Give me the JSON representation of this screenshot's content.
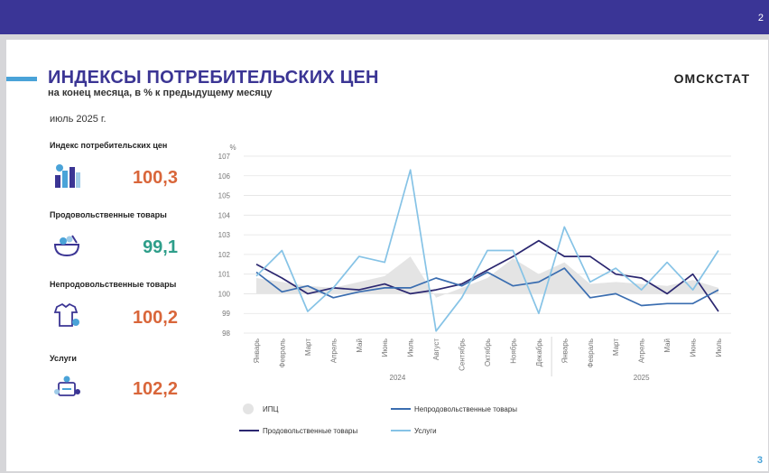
{
  "header": {
    "page_number": "2"
  },
  "slide": {
    "title": "ИНДЕКСЫ ПОТРЕБИТЕЛЬСКИХ ЦЕН",
    "subtitle": "на конец месяца, в % к предыдущему месяцу",
    "brand": "ОМСКСТАТ",
    "period": "июль 2025 г.",
    "page_number": "3"
  },
  "indicators": [
    {
      "label": "Индекс потребительских цен",
      "value": "100,3",
      "color": "#d9663a",
      "icon": "price-index-icon"
    },
    {
      "label": "Продовольственные товары",
      "value": "99,1",
      "color": "#2e9e8a",
      "icon": "food-icon"
    },
    {
      "label": "Непродовольственные товары",
      "value": "100,2",
      "color": "#d9663a",
      "icon": "non-food-icon"
    },
    {
      "label": "Услуги",
      "value": "102,2",
      "color": "#d9663a",
      "icon": "services-icon"
    }
  ],
  "chart_data": {
    "type": "line",
    "ylabel": "%",
    "ylim": [
      98,
      107
    ],
    "yticks": [
      "98",
      "99",
      "100",
      "101",
      "102",
      "103",
      "104",
      "105",
      "106",
      "107"
    ],
    "categories": [
      "Январь",
      "Февраль",
      "Март",
      "Апрель",
      "Май",
      "Июнь",
      "Июль",
      "Август",
      "Сентябрь",
      "Октябрь",
      "Ноябрь",
      "Декабрь",
      "Январь",
      "Февраль",
      "Март",
      "Апрель",
      "Май",
      "Июнь",
      "Июль"
    ],
    "year_labels": [
      "2024",
      "2025"
    ],
    "grid": true,
    "legend_position": "bottom",
    "series": [
      {
        "name": "ИПЦ",
        "style": "area",
        "color": "#e4e4e4",
        "values": [
          100.8,
          100.6,
          100.4,
          100.3,
          100.6,
          100.9,
          101.9,
          99.8,
          100.3,
          100.8,
          101.8,
          101.0,
          101.6,
          100.5,
          100.6,
          100.5,
          100.4,
          100.7,
          100.3
        ]
      },
      {
        "name": "Продовольственные товары",
        "style": "line",
        "color": "#2b2770",
        "values": [
          101.5,
          100.8,
          100.0,
          100.3,
          100.2,
          100.5,
          100.0,
          100.2,
          100.5,
          101.2,
          101.9,
          102.7,
          101.9,
          101.9,
          101.0,
          100.8,
          100.0,
          101.0,
          99.1
        ]
      },
      {
        "name": "Непродовольственные товары",
        "style": "line",
        "color": "#3a6db0",
        "values": [
          101.1,
          100.1,
          100.4,
          99.8,
          100.1,
          100.3,
          100.3,
          100.8,
          100.4,
          101.1,
          100.4,
          100.6,
          101.3,
          99.8,
          100.0,
          99.4,
          99.5,
          99.5,
          100.2
        ]
      },
      {
        "name": "Услуги",
        "style": "line",
        "color": "#86c3e6",
        "values": [
          100.9,
          102.2,
          99.1,
          100.3,
          101.9,
          101.6,
          106.3,
          98.1,
          99.8,
          102.2,
          102.2,
          99.0,
          103.4,
          100.6,
          101.3,
          100.2,
          101.6,
          100.2,
          102.2
        ]
      }
    ]
  }
}
